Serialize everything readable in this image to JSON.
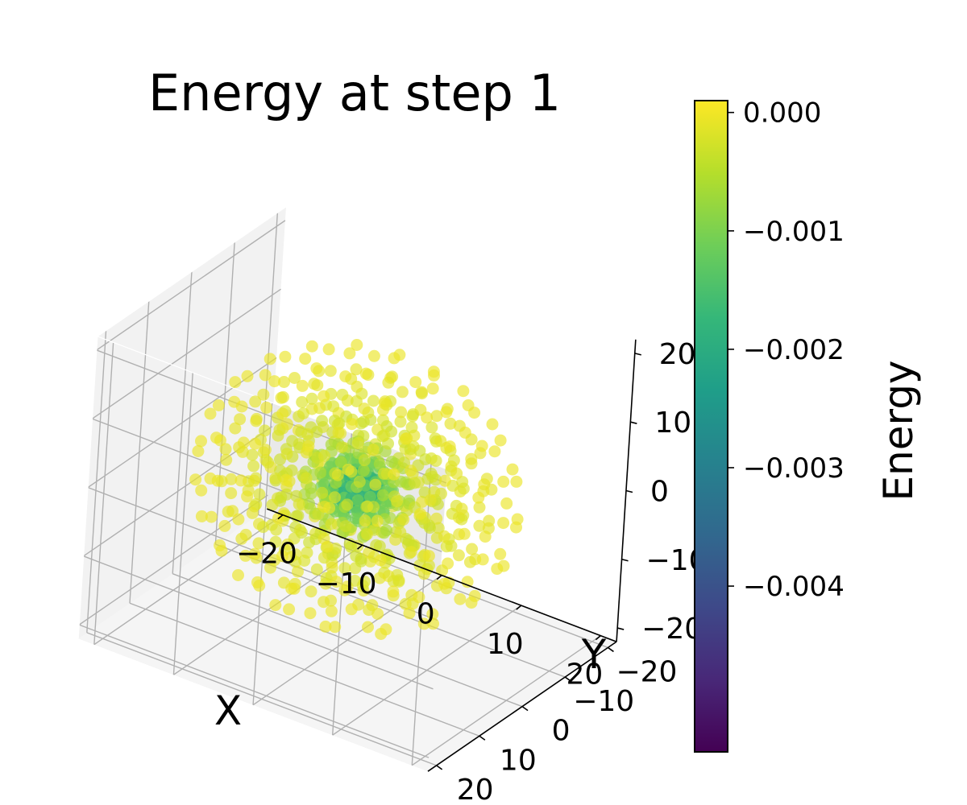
{
  "chart_data": {
    "type": "scatter",
    "projection": "3d",
    "title": "Energy at step 1",
    "xlabel": "X",
    "ylabel": "Y",
    "zlabel": "",
    "xlim": [
      -22,
      22
    ],
    "ylim": [
      -22,
      22
    ],
    "zlim": [
      -22,
      22
    ],
    "x_ticks": [
      "−20",
      "−10",
      "0",
      "10",
      "20"
    ],
    "y_ticks": [
      "−20",
      "−10",
      "0",
      "10",
      "20"
    ],
    "z_ticks": [
      "−20",
      "−10",
      "0",
      "10",
      "20"
    ],
    "grid": true,
    "colormap": "viridis",
    "colorbar": {
      "label": "Energy",
      "range": [
        -0.0054,
        0.0001
      ],
      "ticks": [
        "0.000",
        "−0.001",
        "−0.002",
        "−0.003",
        "−0.004"
      ]
    },
    "shells": [
      {
        "radius": 2.5,
        "energy": -0.0018,
        "count": 60
      },
      {
        "radius": 4,
        "energy": -0.0011,
        "count": 80
      },
      {
        "radius": 6,
        "energy": -0.0006,
        "count": 70
      },
      {
        "radius": 9,
        "energy": -0.0003,
        "count": 110
      },
      {
        "radius": 12,
        "energy": -0.00018,
        "count": 130
      },
      {
        "radius": 15,
        "energy": -0.0001,
        "count": 140
      },
      {
        "radius": 18,
        "energy": -5e-05,
        "count": 140
      }
    ],
    "marker_alpha": 0.65,
    "colors": {
      "viridis_stops": [
        "#440154",
        "#482878",
        "#3e4989",
        "#31688e",
        "#26828e",
        "#1f9e89",
        "#35b779",
        "#6ece58",
        "#b5de2b",
        "#fde725"
      ],
      "pane_left": "#f2f2f2",
      "pane_right": "#e9e9e9",
      "pane_floor": "#f5f5f5",
      "grid": "#b0b0b0"
    }
  }
}
